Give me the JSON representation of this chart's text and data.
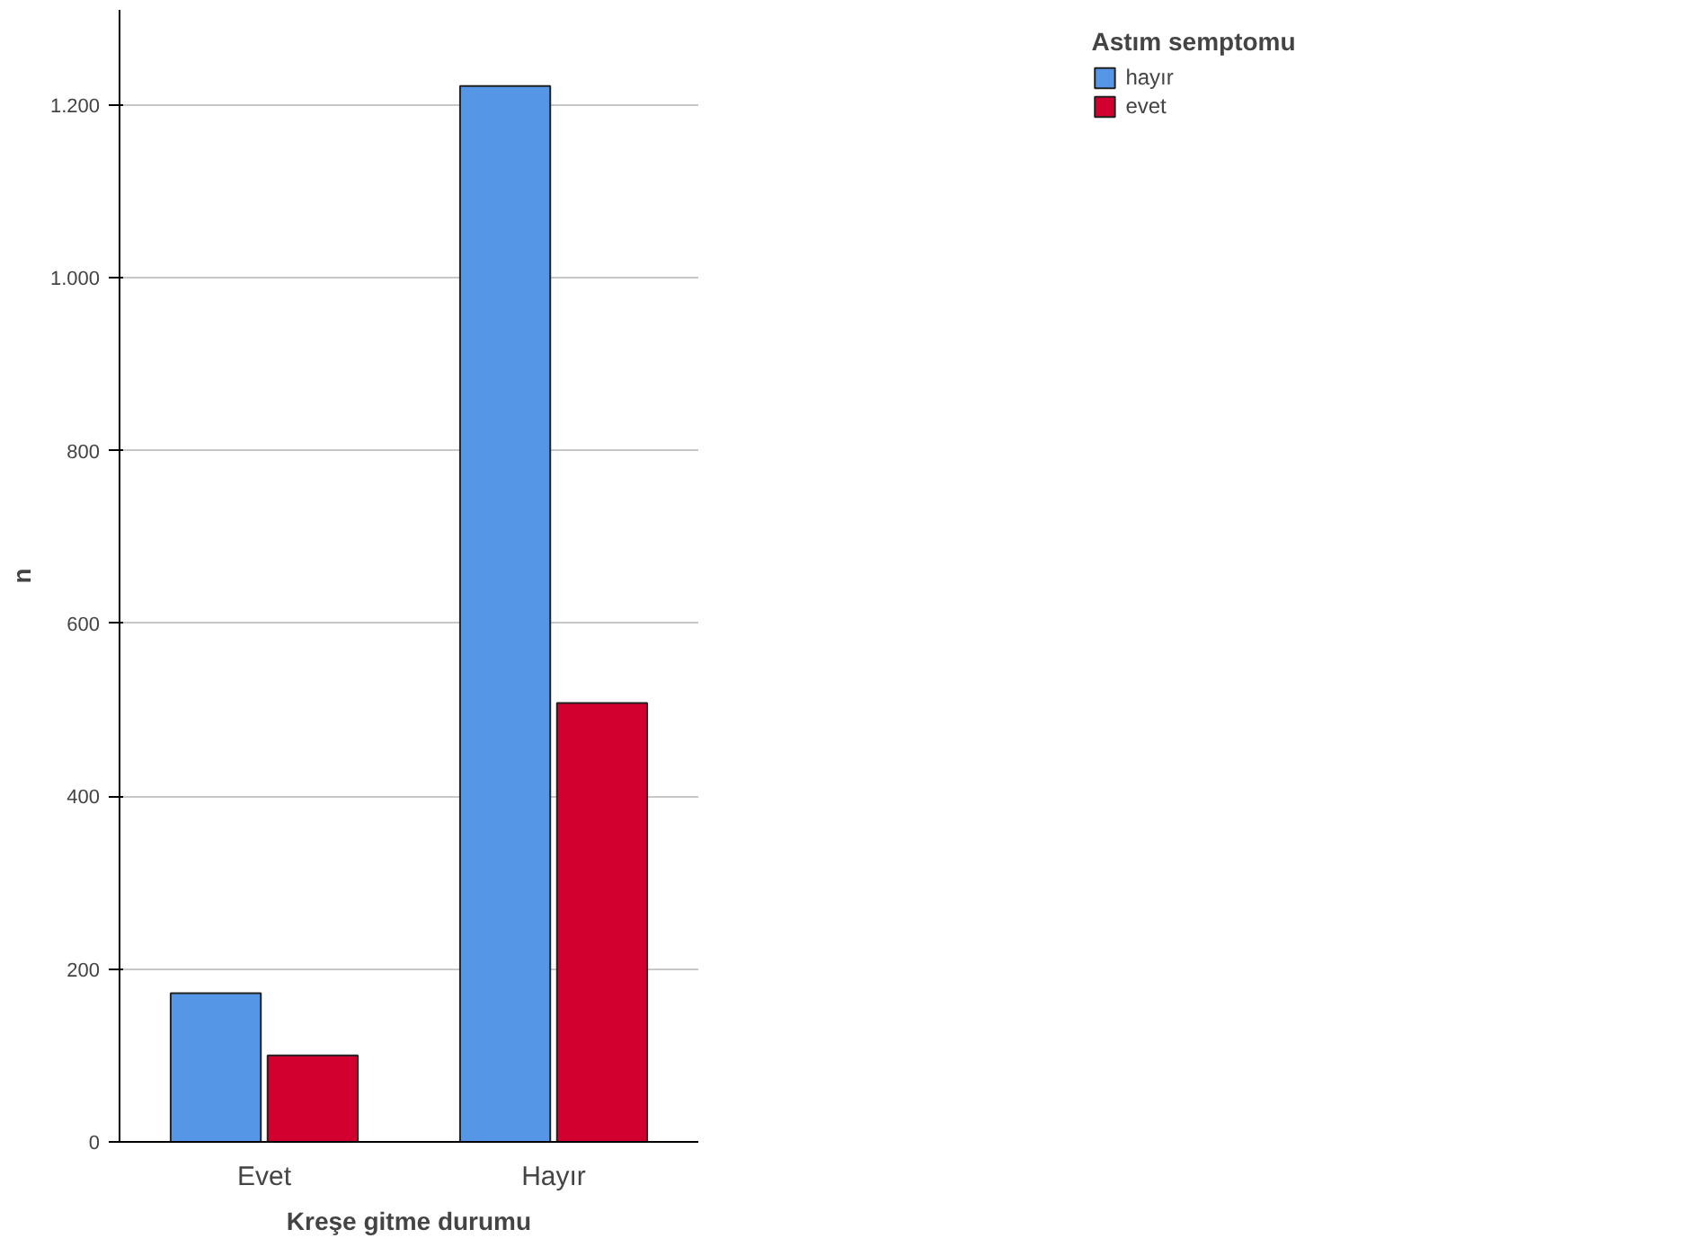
{
  "chart_data": {
    "type": "bar",
    "xlabel": "Kreşe gitme durumu",
    "ylabel": "n",
    "legend_title": "Astım semptomu",
    "categories": [
      "Evet",
      "Hayır"
    ],
    "series": [
      {
        "name": "hayır",
        "color": "#5596e6",
        "values": [
          172,
          1222
        ]
      },
      {
        "name": "evet",
        "color": "#d2002e",
        "values": [
          100,
          508
        ]
      }
    ],
    "ylim": [
      0,
      1310
    ],
    "yticks": [
      0,
      200,
      400,
      600,
      800,
      {
        "value": 1000,
        "label": "1.000"
      },
      {
        "value": 1200,
        "label": "1.200"
      }
    ],
    "grid": "y",
    "legend": "top right"
  }
}
